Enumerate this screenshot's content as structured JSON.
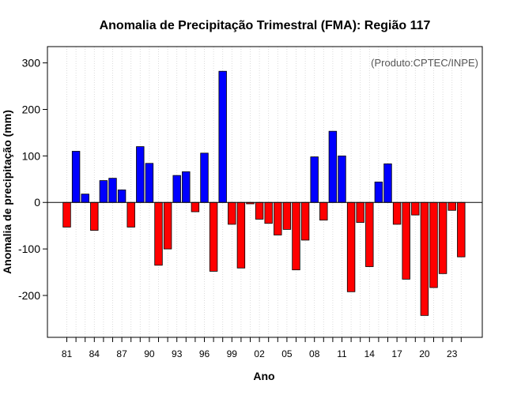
{
  "chart_data": {
    "type": "bar",
    "title": "Anomalia de Precipitação Trimestral (FMA): Região 117",
    "xlabel": "Ano",
    "ylabel": "Anomalia de precipitação (mm)",
    "credit": "(Produto:CPTEC/INPE)",
    "ylim": [
      -290,
      335
    ],
    "yticks": [
      -200,
      -100,
      0,
      100,
      200,
      300
    ],
    "ytick_labels": [
      "-200",
      "-100",
      "0",
      "100",
      "200",
      "300"
    ],
    "xtick_labels": [
      "81",
      "84",
      "87",
      "90",
      "93",
      "96",
      "99",
      "02",
      "05",
      "08",
      "11",
      "14",
      "17",
      "20",
      "23"
    ],
    "xtick_years": [
      1981,
      1984,
      1987,
      1990,
      1993,
      1996,
      1999,
      2002,
      2005,
      2008,
      2011,
      2014,
      2017,
      2020,
      2023
    ],
    "grid": true,
    "colors": {
      "positive": "#0000ff",
      "negative": "#ff0000",
      "zero_line": "#000000",
      "grid": "#d3d3d3"
    },
    "years": [
      1981,
      1982,
      1983,
      1984,
      1985,
      1986,
      1987,
      1988,
      1989,
      1990,
      1991,
      1992,
      1993,
      1994,
      1995,
      1996,
      1997,
      1998,
      1999,
      2000,
      2001,
      2002,
      2003,
      2004,
      2005,
      2006,
      2007,
      2008,
      2009,
      2010,
      2011,
      2012,
      2013,
      2014,
      2015,
      2016,
      2017,
      2018,
      2019,
      2020,
      2021,
      2022,
      2023,
      2024
    ],
    "values": [
      -53,
      110,
      18,
      -60,
      47,
      52,
      27,
      -53,
      120,
      84,
      -135,
      -100,
      58,
      66,
      -20,
      106,
      -148,
      282,
      -47,
      -141,
      -3,
      -36,
      -45,
      -70,
      -58,
      -145,
      -81,
      98,
      -38,
      153,
      100,
      -192,
      -43,
      -138,
      44,
      83,
      -47,
      -165,
      -27,
      -243,
      -183,
      -153,
      -17,
      -117
    ]
  }
}
